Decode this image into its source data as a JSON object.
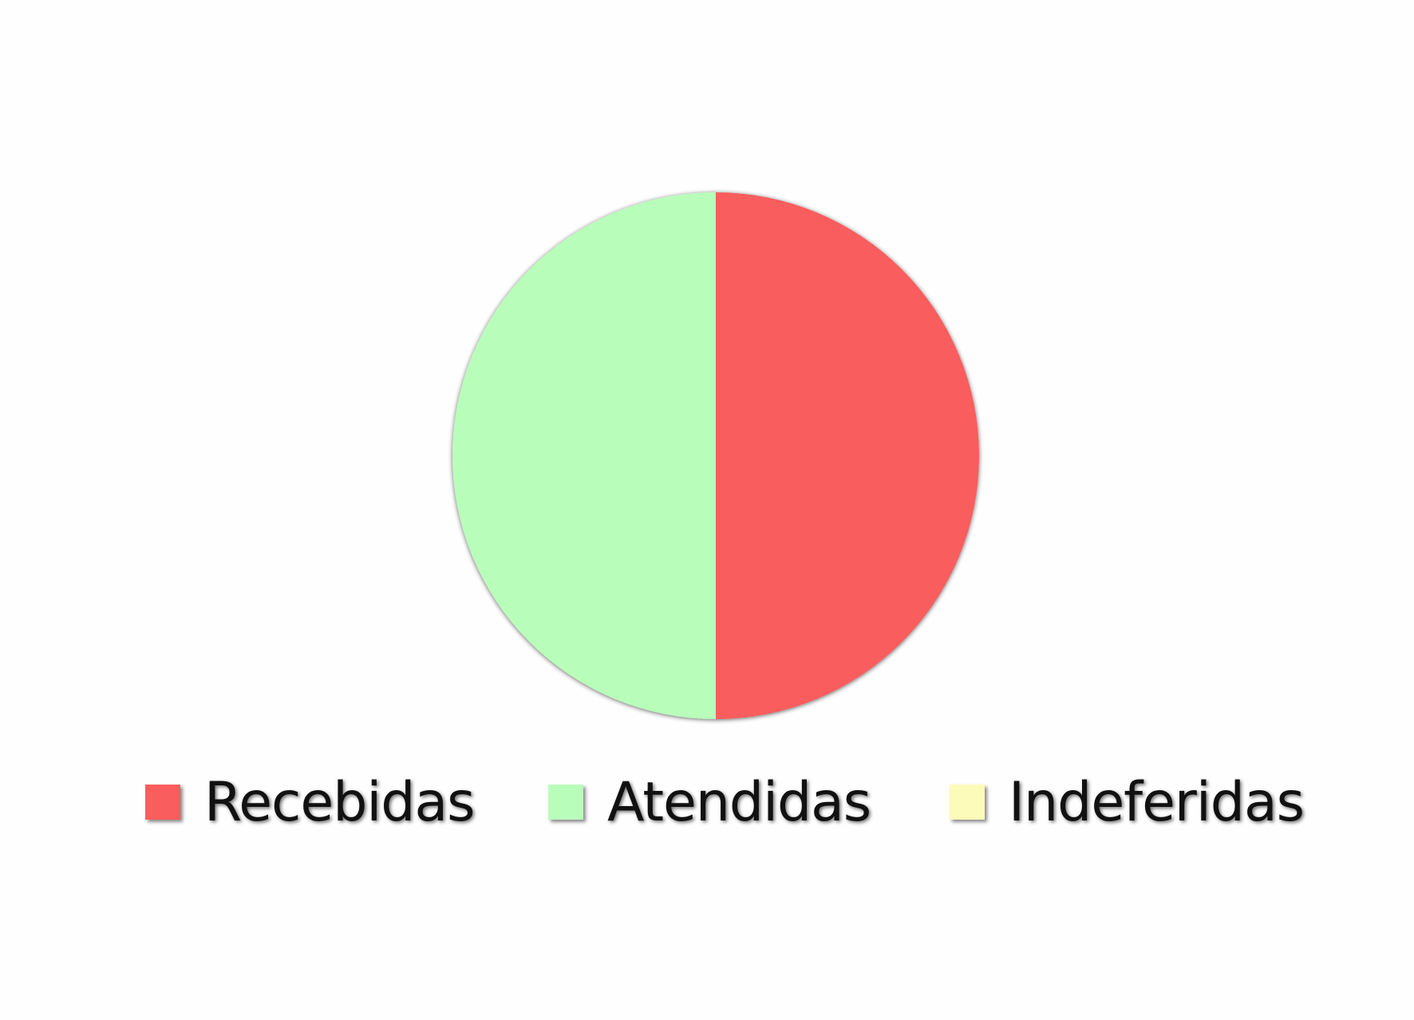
{
  "chart_data": {
    "type": "pie",
    "categories": [
      "Recebidas",
      "Atendidas",
      "Indeferidas"
    ],
    "values": [
      50,
      50,
      0
    ],
    "colors": [
      "#f95d5d",
      "#b9fdbb",
      "#fdfbb9"
    ],
    "legend_position": "bottom"
  }
}
